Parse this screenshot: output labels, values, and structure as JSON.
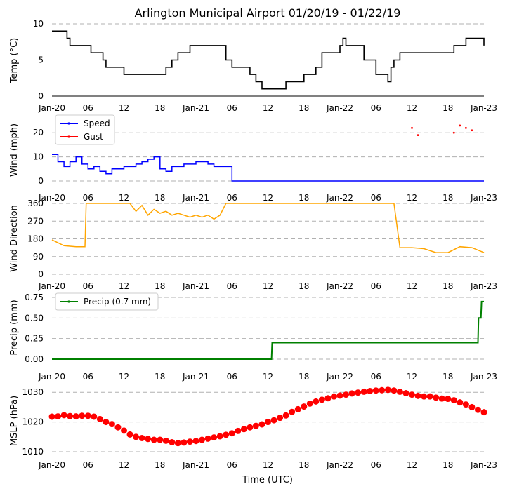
{
  "title": "Arlington Municipal Airport 01/20/19 - 01/22/19",
  "xlabel": "Time (UTC)",
  "x_ticks": [
    "Jan-20",
    "06",
    "12",
    "18",
    "Jan-21",
    "06",
    "12",
    "18",
    "Jan-22",
    "06",
    "12",
    "18",
    "Jan-23"
  ],
  "colors": {
    "temp": "#000000",
    "speed": "#0000ff",
    "gust": "#ff0000",
    "dir": "#ffa500",
    "precip": "#008000",
    "mslp": "#ff0000",
    "grid": "#b0b0b0"
  },
  "chart_data": [
    {
      "type": "line",
      "name": "temperature",
      "ylabel": "Temp (°C)",
      "ylim": [
        0,
        10
      ],
      "yticks": [
        0,
        5,
        10
      ],
      "x_unit": "hours since 2019-01-20 00:00 UTC",
      "series": [
        {
          "name": "Temp",
          "x": [
            0,
            2,
            2.5,
            3,
            6,
            6.5,
            8,
            8.5,
            9,
            12,
            14,
            16,
            18,
            19,
            20,
            21,
            23,
            25,
            28,
            29,
            30,
            31,
            32,
            33,
            34,
            35,
            36,
            38,
            39,
            40,
            41,
            42,
            44,
            45,
            48,
            48.5,
            49,
            51,
            52,
            54,
            55,
            56,
            56.5,
            57,
            58,
            60,
            62,
            65,
            67,
            69,
            70,
            72
          ],
          "y": [
            9,
            9,
            8,
            7,
            7,
            6,
            6,
            5,
            4,
            3,
            3,
            3,
            3,
            4,
            5,
            6,
            7,
            7,
            7,
            5,
            4,
            4,
            4,
            3,
            2,
            1,
            1,
            1,
            2,
            2,
            2,
            3,
            4,
            6,
            7,
            8,
            7,
            7,
            5,
            3,
            3,
            2,
            4,
            5,
            6,
            6,
            6,
            6,
            7,
            8,
            8,
            7
          ]
        }
      ]
    },
    {
      "type": "line",
      "name": "wind-speed",
      "ylabel": "Wind (mph)",
      "ylim": [
        0,
        25
      ],
      "yticks": [
        0,
        10,
        20
      ],
      "legend": [
        "Speed",
        "Gust"
      ],
      "legend_loc": "upper-left",
      "series": [
        {
          "name": "Speed",
          "x": [
            0,
            1,
            2,
            3,
            4,
            5,
            6,
            7,
            8,
            9,
            10,
            12,
            14,
            15,
            16,
            17,
            18,
            19,
            20,
            22,
            24,
            26,
            27,
            28,
            29,
            30,
            31,
            32,
            33,
            34,
            35,
            36,
            37,
            38,
            39,
            40,
            41,
            42,
            43,
            44,
            45,
            46,
            47,
            48,
            49,
            50,
            51,
            52,
            53,
            54,
            55,
            56,
            57,
            58,
            59,
            60,
            61,
            62,
            63,
            64,
            65,
            66,
            67,
            68,
            69,
            70,
            71,
            72
          ],
          "y": [
            11,
            8,
            6,
            8,
            10,
            7,
            5,
            6,
            4,
            3,
            5,
            6,
            7,
            8,
            9,
            10,
            5,
            4,
            6,
            7,
            8,
            7,
            6,
            6,
            6,
            0,
            0,
            0,
            0,
            0,
            0,
            0,
            0,
            0,
            0,
            0,
            0,
            0,
            0,
            0,
            0,
            0,
            0,
            0,
            0,
            0,
            0,
            0,
            0,
            0,
            0,
            0,
            0,
            0,
            0,
            0,
            0,
            0,
            0,
            0,
            0,
            0,
            0,
            0,
            0,
            0,
            0,
            0
          ]
        },
        {
          "name": "Gust",
          "x": [
            60,
            61,
            67,
            68,
            69,
            70
          ],
          "y": [
            22,
            19,
            20,
            23,
            22,
            21
          ]
        }
      ]
    },
    {
      "type": "line",
      "name": "wind-direction",
      "ylabel": "Wind Direction",
      "ylim": [
        0,
        360
      ],
      "yticks": [
        0,
        90,
        180,
        270,
        360
      ],
      "series": [
        {
          "name": "Direction",
          "x": [
            0,
            2,
            4,
            5.5,
            5.7,
            6,
            8,
            10,
            12,
            13,
            14,
            15,
            16,
            17,
            18,
            19,
            20,
            21,
            22,
            23,
            24,
            25,
            26,
            27,
            28,
            29,
            30,
            32,
            34,
            36,
            38,
            40,
            42,
            44,
            46,
            48,
            50,
            52,
            54,
            56,
            57,
            58,
            60,
            62,
            64,
            66,
            68,
            70,
            72
          ],
          "y": [
            175,
            145,
            140,
            140,
            360,
            360,
            360,
            360,
            360,
            360,
            320,
            350,
            300,
            330,
            310,
            320,
            300,
            310,
            300,
            290,
            300,
            290,
            300,
            280,
            300,
            360,
            360,
            360,
            360,
            360,
            360,
            360,
            360,
            360,
            360,
            360,
            360,
            360,
            360,
            360,
            360,
            135,
            135,
            130,
            110,
            110,
            140,
            135,
            110
          ]
        }
      ]
    },
    {
      "type": "line",
      "name": "precipitation",
      "ylabel": "Precip (mm)",
      "ylim": [
        0,
        0.75
      ],
      "yticks": [
        "0.00",
        "0.25",
        "0.50",
        "0.75"
      ],
      "legend": [
        "Precip (0.7 mm)"
      ],
      "legend_loc": "upper-left",
      "series": [
        {
          "name": "Precip (0.7 mm)",
          "x": [
            0,
            36.6,
            36.7,
            71.0,
            71.1,
            71.5,
            71.6,
            72
          ],
          "y": [
            0,
            0,
            0.2,
            0.2,
            0.5,
            0.5,
            0.7,
            0.7
          ]
        }
      ]
    },
    {
      "type": "scatter",
      "name": "mslp",
      "ylabel": "MSLP (hPa)",
      "ylim": [
        1010,
        1031
      ],
      "yticks": [
        1010,
        1020,
        1030
      ],
      "series": [
        {
          "name": "MSLP",
          "x": [
            0,
            1,
            2,
            3,
            4,
            5,
            6,
            7,
            8,
            9,
            10,
            11,
            12,
            13,
            14,
            15,
            16,
            17,
            18,
            19,
            20,
            21,
            22,
            23,
            24,
            25,
            26,
            27,
            28,
            29,
            30,
            31,
            32,
            33,
            34,
            35,
            36,
            37,
            38,
            39,
            40,
            41,
            42,
            43,
            44,
            45,
            46,
            47,
            48,
            49,
            50,
            51,
            52,
            53,
            54,
            55,
            56,
            57,
            58,
            59,
            60,
            61,
            62,
            63,
            64,
            65,
            66,
            67,
            68,
            69,
            70,
            71,
            72
          ],
          "y": [
            1021.8,
            1021.9,
            1022.3,
            1022.0,
            1021.9,
            1022.1,
            1022.1,
            1021.8,
            1021.0,
            1020.0,
            1019.3,
            1018.2,
            1017.1,
            1015.8,
            1015.0,
            1014.6,
            1014.3,
            1014.0,
            1014.0,
            1013.7,
            1013.2,
            1012.9,
            1013.1,
            1013.4,
            1013.6,
            1014.0,
            1014.4,
            1014.8,
            1015.2,
            1015.7,
            1016.2,
            1017.0,
            1017.6,
            1018.2,
            1018.7,
            1019.2,
            1020.0,
            1020.6,
            1021.4,
            1022.2,
            1023.4,
            1024.3,
            1025.2,
            1026.2,
            1026.9,
            1027.5,
            1028.0,
            1028.6,
            1028.9,
            1029.2,
            1029.6,
            1029.9,
            1030.2,
            1030.4,
            1030.6,
            1030.7,
            1030.8,
            1030.6,
            1030.2,
            1029.7,
            1029.2,
            1028.8,
            1028.6,
            1028.6,
            1028.2,
            1027.9,
            1027.8,
            1027.3,
            1026.6,
            1025.9,
            1025.0,
            1024.1,
            1023.3
          ]
        }
      ]
    }
  ]
}
